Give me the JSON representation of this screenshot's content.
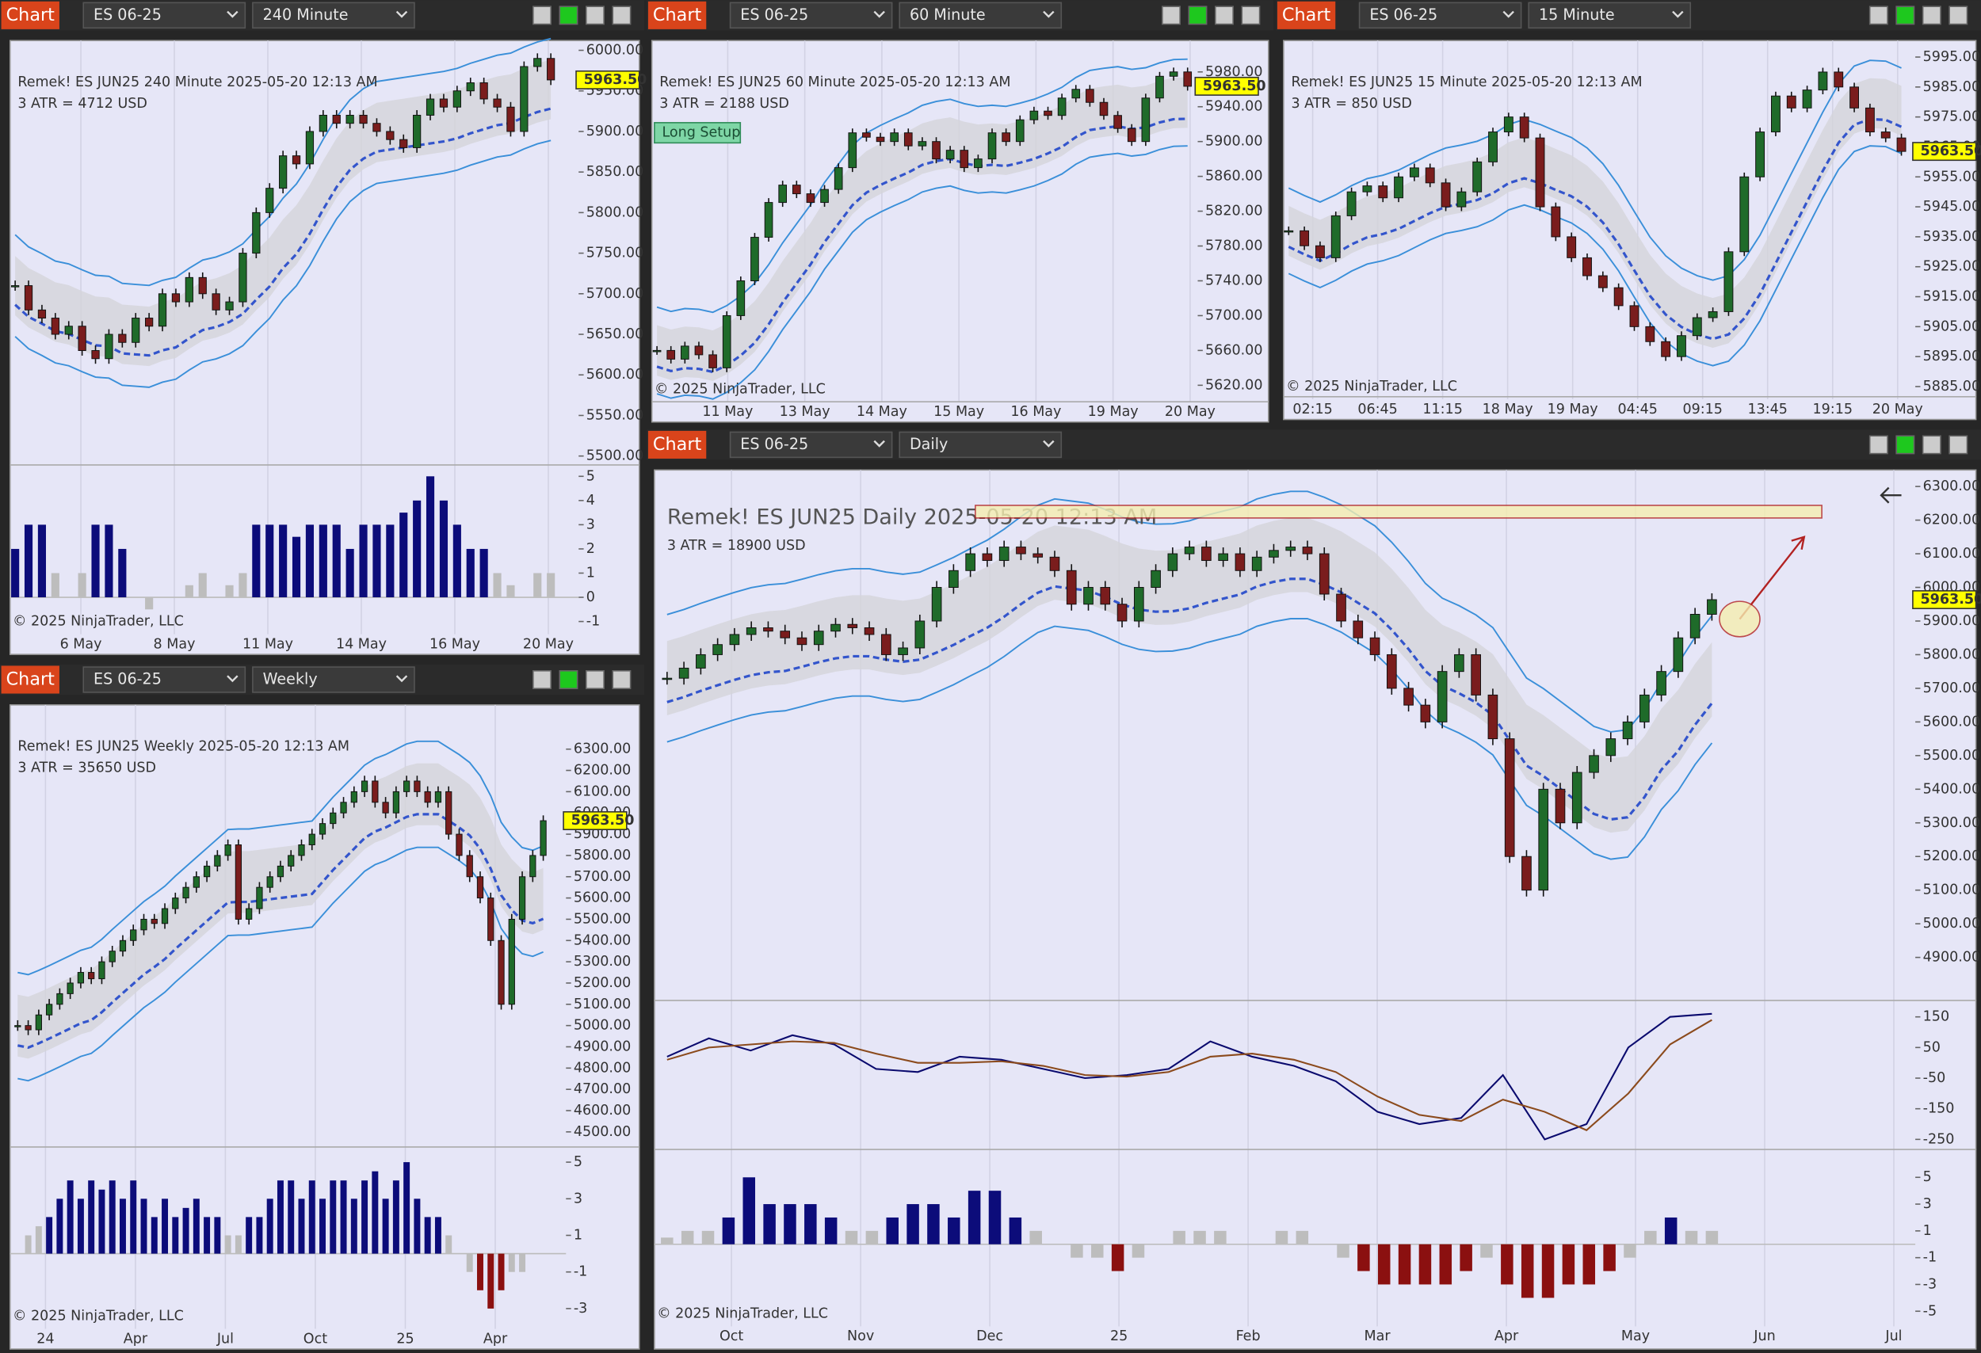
{
  "app_button": "Chart",
  "panels": [
    {
      "symbol": "ES 06-25",
      "timeframe": "240 Minute",
      "info": "Remek!  ES JUN25  240 Minute  2025-05-20 12:13 AM",
      "atr": "3 ATR = 4712 USD",
      "copyright": "© 2025 NinjaTrader, LLC",
      "price_tag": {
        "value": 5963.5,
        "label": "5963.50"
      },
      "ylim": [
        5489,
        6012
      ],
      "yticks": [
        {
          "value": 6000,
          "label": "6000.00"
        },
        {
          "value": 5950,
          "label": "5950.00"
        },
        {
          "value": 5900,
          "label": "5900.00"
        },
        {
          "value": 5850,
          "label": "5850.00"
        },
        {
          "value": 5800,
          "label": "5800.00"
        },
        {
          "value": 5750,
          "label": "5750.00"
        },
        {
          "value": 5700,
          "label": "5700.00"
        },
        {
          "value": 5650,
          "label": "5650.00"
        },
        {
          "value": 5600,
          "label": "5600.00"
        },
        {
          "value": 5550,
          "label": "5550.00"
        },
        {
          "value": 5500,
          "label": "5500.00"
        }
      ],
      "dates": [
        "6 May",
        "8 May",
        "11 May",
        "14 May",
        "16 May",
        "20 May"
      ],
      "closes": [
        5710,
        5680,
        5670,
        5650,
        5660,
        5630,
        5620,
        5650,
        5640,
        5670,
        5660,
        5700,
        5690,
        5720,
        5700,
        5680,
        5690,
        5750,
        5800,
        5830,
        5870,
        5860,
        5900,
        5920,
        5910,
        5920,
        5910,
        5900,
        5890,
        5880,
        5920,
        5940,
        5930,
        5950,
        5960,
        5940,
        5930,
        5900,
        5980,
        5990,
        5963.5
      ],
      "indicator": {
        "ylim": [
          -1.42,
          5.47
        ],
        "yticks": [
          5,
          4,
          3,
          2,
          1,
          0,
          -1
        ],
        "values": [
          2,
          3,
          3,
          1,
          0,
          1,
          3,
          3,
          2,
          0,
          -0.5,
          0,
          0,
          0.5,
          1,
          0,
          0.5,
          1,
          3,
          3,
          3,
          2.5,
          3,
          3,
          3,
          2,
          3,
          3,
          3,
          3.5,
          4,
          5,
          4,
          3,
          2,
          2,
          1,
          0.5,
          0,
          1,
          1
        ]
      }
    },
    {
      "symbol": "ES 06-25",
      "timeframe": "60 Minute",
      "info": "Remek!  ES JUN25  60 Minute  2025-05-20 12:13 AM",
      "atr": "3 ATR = 2188 USD",
      "copyright": "© 2025 NinjaTrader, LLC",
      "label": "Long Setup",
      "price_tag": {
        "value": 5963.5,
        "label": "5963.50"
      },
      "ylim": [
        5601,
        6016
      ],
      "yticks": [
        {
          "value": 5980,
          "label": "5980.00"
        },
        {
          "value": 5940,
          "label": "5940.00"
        },
        {
          "value": 5900,
          "label": "5900.00"
        },
        {
          "value": 5860,
          "label": "5860.00"
        },
        {
          "value": 5820,
          "label": "5820.00"
        },
        {
          "value": 5780,
          "label": "5780.00"
        },
        {
          "value": 5740,
          "label": "5740.00"
        },
        {
          "value": 5700,
          "label": "5700.00"
        },
        {
          "value": 5660,
          "label": "5660.00"
        },
        {
          "value": 5620,
          "label": "5620.00"
        }
      ],
      "dates": [
        "11 May",
        "13 May",
        "14 May",
        "15 May",
        "16 May",
        "19 May",
        "20 May"
      ],
      "closes": [
        5660,
        5650,
        5665,
        5655,
        5640,
        5700,
        5740,
        5790,
        5830,
        5850,
        5840,
        5830,
        5845,
        5870,
        5910,
        5905,
        5900,
        5910,
        5895,
        5900,
        5880,
        5890,
        5870,
        5880,
        5910,
        5900,
        5925,
        5935,
        5930,
        5950,
        5960,
        5945,
        5930,
        5915,
        5900,
        5950,
        5975,
        5980,
        5963.5
      ]
    },
    {
      "symbol": "ES 06-25",
      "timeframe": "15 Minute",
      "info": "Remek!  ES JUN25  15 Minute  2025-05-20 12:13 AM",
      "atr": "3 ATR = 850 USD",
      "copyright": "© 2025 NinjaTrader, LLC",
      "price_tag": {
        "value": 5963.5,
        "label": "5963.50"
      },
      "ylim": [
        5881.6,
        6000.5
      ],
      "yticks": [
        {
          "value": 5995,
          "label": "5995.00"
        },
        {
          "value": 5985,
          "label": "5985.00"
        },
        {
          "value": 5975,
          "label": "5975.00"
        },
        {
          "value": 5965,
          "label": "5965.00"
        },
        {
          "value": 5955,
          "label": "5955.00"
        },
        {
          "value": 5945,
          "label": "5945.00"
        },
        {
          "value": 5935,
          "label": "5935.00"
        },
        {
          "value": 5925,
          "label": "5925.00"
        },
        {
          "value": 5915,
          "label": "5915.00"
        },
        {
          "value": 5905,
          "label": "5905.00"
        },
        {
          "value": 5895,
          "label": "5895.00"
        },
        {
          "value": 5885,
          "label": "5885.00"
        }
      ],
      "dates": [
        "02:15",
        "06:45",
        "11:15",
        "18 May",
        "19 May",
        "04:45",
        "09:15",
        "13:45",
        "19:15",
        "20 May"
      ],
      "closes": [
        5937,
        5932,
        5928,
        5942,
        5950,
        5952,
        5948,
        5955,
        5958,
        5953,
        5945,
        5950,
        5960,
        5970,
        5975,
        5968,
        5945,
        5935,
        5928,
        5922,
        5918,
        5912,
        5905,
        5900,
        5895,
        5902,
        5908,
        5910,
        5930,
        5955,
        5970,
        5982,
        5978,
        5984,
        5990,
        5985,
        5978,
        5970,
        5968,
        5963.5
      ]
    },
    {
      "symbol": "ES 06-25",
      "timeframe": "Weekly",
      "info": "Remek!  ES JUN25  Weekly  2025-05-20 12:13 AM",
      "atr": "3 ATR = 35650 USD",
      "copyright": "© 2025 NinjaTrader, LLC",
      "price_tag": {
        "value": 5963.5,
        "label": "5963.50"
      },
      "ylim": [
        4429,
        6508
      ],
      "yticks": [
        {
          "value": 6300,
          "label": "6300.00"
        },
        {
          "value": 6200,
          "label": "6200.00"
        },
        {
          "value": 6100,
          "label": "6100.00"
        },
        {
          "value": 6000,
          "label": "6000.00"
        },
        {
          "value": 5900,
          "label": "5900.00"
        },
        {
          "value": 5800,
          "label": "5800.00"
        },
        {
          "value": 5700,
          "label": "5700.00"
        },
        {
          "value": 5600,
          "label": "5600.00"
        },
        {
          "value": 5500,
          "label": "5500.00"
        },
        {
          "value": 5400,
          "label": "5400.00"
        },
        {
          "value": 5300,
          "label": "5300.00"
        },
        {
          "value": 5200,
          "label": "5200.00"
        },
        {
          "value": 5100,
          "label": "5100.00"
        },
        {
          "value": 5000,
          "label": "5000.00"
        },
        {
          "value": 4900,
          "label": "4900.00"
        },
        {
          "value": 4800,
          "label": "4800.00"
        },
        {
          "value": 4700,
          "label": "4700.00"
        },
        {
          "value": 4600,
          "label": "4600.00"
        },
        {
          "value": 4500,
          "label": "4500.00"
        }
      ],
      "dates": [
        "24",
        "Apr",
        "Jul",
        "Oct",
        "25",
        "Apr"
      ],
      "closes": [
        5000,
        4980,
        5050,
        5100,
        5150,
        5200,
        5250,
        5220,
        5300,
        5350,
        5400,
        5450,
        5500,
        5480,
        5550,
        5600,
        5650,
        5700,
        5750,
        5800,
        5850,
        5500,
        5550,
        5650,
        5700,
        5750,
        5800,
        5850,
        5900,
        5950,
        6000,
        6050,
        6100,
        6150,
        6050,
        6000,
        6100,
        6150,
        6100,
        6050,
        6100,
        5900,
        5800,
        5700,
        5600,
        5400,
        5100,
        5500,
        5700,
        5800,
        5963.5
      ],
      "indicator": {
        "ylim": [
          -3.97,
          5.83
        ],
        "yticks": [
          5,
          3,
          1,
          -1,
          -3
        ],
        "values": [
          0,
          1,
          1.5,
          2,
          3,
          4,
          3,
          4,
          3.5,
          4,
          3,
          4,
          3,
          2,
          3,
          2,
          2.5,
          3,
          2,
          2,
          1,
          1,
          2,
          2,
          3,
          4,
          4,
          3,
          4,
          3,
          4,
          4,
          3,
          4,
          4.5,
          3,
          4,
          5,
          3,
          2,
          2,
          1,
          0,
          -1,
          -2,
          -3,
          -2,
          -1,
          -1,
          0,
          0
        ]
      }
    },
    {
      "symbol": "ES 06-25",
      "timeframe": "Daily",
      "info": "Remek!  ES JUN25  Daily  2025-05-20 12:13 AM",
      "atr": "3 ATR = 18900 USD",
      "copyright": "© 2025 NinjaTrader, LLC",
      "price_tag": {
        "value": 5963.5,
        "label": "5963.50"
      },
      "ylim": [
        4772,
        6349
      ],
      "yticks": [
        {
          "value": 6300,
          "label": "6300.00"
        },
        {
          "value": 6200,
          "label": "6200.00"
        },
        {
          "value": 6100,
          "label": "6100.00"
        },
        {
          "value": 6000,
          "label": "6000.00"
        },
        {
          "value": 5900,
          "label": "5900.00"
        },
        {
          "value": 5800,
          "label": "5800.00"
        },
        {
          "value": 5700,
          "label": "5700.00"
        },
        {
          "value": 5600,
          "label": "5600.00"
        },
        {
          "value": 5500,
          "label": "5500.00"
        },
        {
          "value": 5400,
          "label": "5400.00"
        },
        {
          "value": 5300,
          "label": "5300.00"
        },
        {
          "value": 5200,
          "label": "5200.00"
        },
        {
          "value": 5100,
          "label": "5100.00"
        },
        {
          "value": 5000,
          "label": "5000.00"
        },
        {
          "value": 4900,
          "label": "4900.00"
        }
      ],
      "dates": [
        "Oct",
        "Nov",
        "Dec",
        "25",
        "Feb",
        "Mar",
        "Apr",
        "May",
        "Jun",
        "Jul"
      ],
      "closes": [
        5730,
        5760,
        5800,
        5830,
        5860,
        5880,
        5870,
        5850,
        5830,
        5870,
        5890,
        5880,
        5860,
        5800,
        5820,
        5900,
        6000,
        6050,
        6100,
        6080,
        6120,
        6100,
        6090,
        6050,
        5950,
        6000,
        5950,
        5900,
        6000,
        6050,
        6100,
        6120,
        6080,
        6100,
        6050,
        6090,
        6110,
        6120,
        6100,
        5980,
        5900,
        5850,
        5800,
        5700,
        5650,
        5600,
        5750,
        5800,
        5680,
        5550,
        5200,
        5100,
        5400,
        5300,
        5450,
        5500,
        5550,
        5600,
        5680,
        5750,
        5850,
        5920,
        5963.5
      ],
      "oscillator": {
        "ylim": [
          -283,
          203.6
        ],
        "yticks": [
          150,
          50,
          -50,
          -150,
          -250
        ],
        "series": [
          {
            "color": "#0a0a6e",
            "values": [
              20,
              80,
              40,
              90,
              60,
              -20,
              -30,
              20,
              10,
              -20,
              -50,
              -40,
              -20,
              70,
              20,
              -10,
              -60,
              -160,
              -200,
              -180,
              -40,
              -250,
              -200,
              50,
              150,
              160
            ]
          },
          {
            "color": "#8b4a1c",
            "values": [
              10,
              50,
              60,
              70,
              65,
              30,
              0,
              0,
              5,
              -10,
              -40,
              -45,
              -30,
              20,
              30,
              10,
              -30,
              -110,
              -170,
              -190,
              -120,
              -160,
              -220,
              -100,
              60,
              140
            ]
          }
        ]
      },
      "indicator": {
        "ylim": [
          -5.75,
          7.08
        ],
        "yticks": [
          5,
          3,
          1,
          -1,
          -3,
          -5
        ],
        "values": [
          0.5,
          1,
          1,
          2,
          5,
          3,
          3,
          3,
          2,
          1,
          1,
          2,
          3,
          3,
          2,
          4,
          4,
          2,
          1,
          0,
          -1,
          -1,
          -2,
          -1,
          0,
          1,
          1,
          1,
          0,
          0,
          1,
          1,
          0,
          -1,
          -2,
          -3,
          -3,
          -3,
          -3,
          -2,
          -1,
          -3,
          -4,
          -4,
          -3,
          -3,
          -2,
          -1,
          1,
          2,
          1,
          1
        ]
      }
    }
  ]
}
